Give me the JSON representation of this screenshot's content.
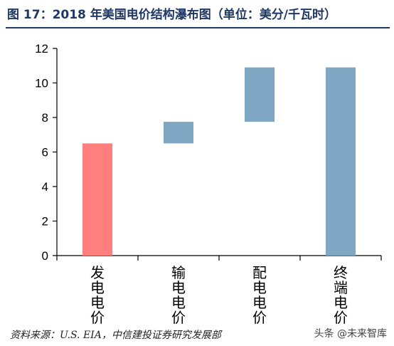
{
  "header": {
    "title": "图 17：2018 年美国电价结构瀑布图（单位：美分/千瓦时）"
  },
  "chart_data": {
    "type": "bar",
    "subtype": "waterfall",
    "categories": [
      "发电电价",
      "输电电价",
      "配电电价",
      "终端电价"
    ],
    "bars": [
      {
        "category": "发电电价",
        "start": 0,
        "end": 6.5,
        "value": 6.5,
        "color": "#ff7f7f"
      },
      {
        "category": "输电电价",
        "start": 6.5,
        "end": 7.75,
        "value": 1.25,
        "color": "#7fa6c2"
      },
      {
        "category": "配电电价",
        "start": 7.75,
        "end": 10.9,
        "value": 3.15,
        "color": "#7fa6c2"
      },
      {
        "category": "终端电价",
        "start": 0,
        "end": 10.9,
        "value": 10.9,
        "color": "#7fa6c2"
      }
    ],
    "yticks": [
      "0",
      "2",
      "4",
      "6",
      "8",
      "10",
      "12"
    ],
    "ylim": [
      0,
      12
    ],
    "grid": false,
    "xlabel": "",
    "ylabel": ""
  },
  "footer": {
    "source": "资料来源：U.S. EIA，中信建投证券研究发展部",
    "watermark": "头条 @未来智库"
  }
}
